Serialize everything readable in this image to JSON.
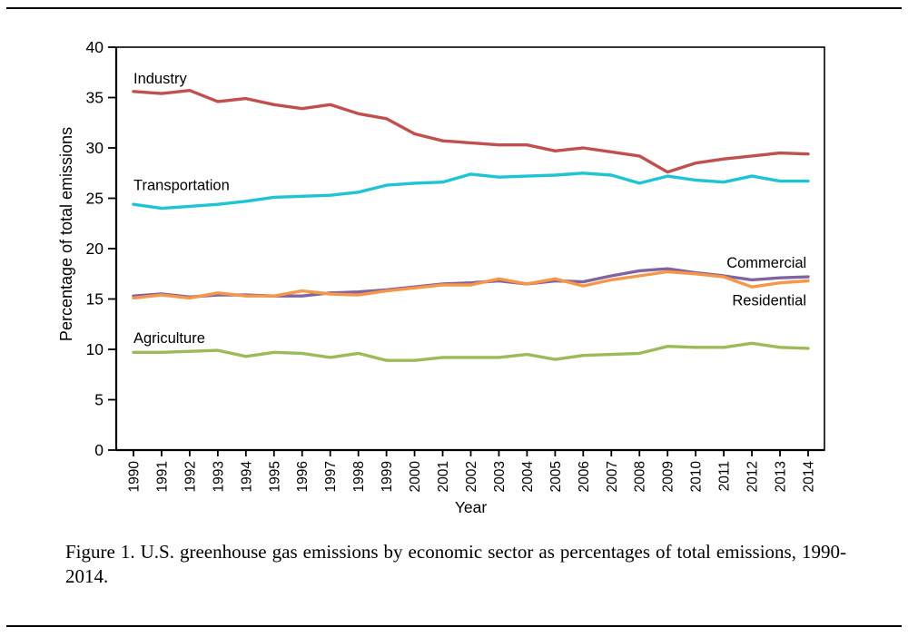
{
  "page": {
    "caption": "Figure 1.  U.S. greenhouse gas emissions by economic sector as percentages of total emissions, 1990-2014."
  },
  "chart_data": {
    "type": "line",
    "title": "",
    "xlabel": "Year",
    "ylabel": "Percentage of total emissions",
    "xlim": [
      1990,
      2014
    ],
    "ylim": [
      0,
      40
    ],
    "yticks": [
      0,
      5,
      10,
      15,
      20,
      25,
      30,
      35,
      40
    ],
    "grid": false,
    "legend": "inline-labels",
    "x": [
      1990,
      1991,
      1992,
      1993,
      1994,
      1995,
      1996,
      1997,
      1998,
      1999,
      2000,
      2001,
      2002,
      2003,
      2004,
      2005,
      2006,
      2007,
      2008,
      2009,
      2010,
      2011,
      2012,
      2013,
      2014
    ],
    "series": [
      {
        "name": "Industry",
        "color": "#c0504d",
        "label_at": [
          1990.0,
          36.4
        ],
        "values": [
          35.6,
          35.4,
          35.7,
          34.6,
          34.9,
          34.3,
          33.9,
          34.3,
          33.4,
          32.9,
          31.4,
          30.7,
          30.5,
          30.3,
          30.3,
          29.7,
          30.0,
          29.6,
          29.2,
          27.6,
          28.5,
          28.9,
          29.2,
          29.5,
          29.4
        ]
      },
      {
        "name": "Transportation",
        "color": "#1fc4d4",
        "label_at": [
          1990.0,
          25.8
        ],
        "values": [
          24.4,
          24.0,
          24.2,
          24.4,
          24.7,
          25.1,
          25.2,
          25.3,
          25.6,
          26.3,
          26.5,
          26.6,
          27.4,
          27.1,
          27.2,
          27.3,
          27.5,
          27.3,
          26.5,
          27.2,
          26.8,
          26.6,
          27.2,
          26.7,
          26.7
        ]
      },
      {
        "name": "Commercial",
        "color": "#8064a2",
        "label_at": [
          2011.1,
          18.1
        ],
        "values": [
          15.3,
          15.5,
          15.2,
          15.4,
          15.4,
          15.3,
          15.3,
          15.6,
          15.7,
          15.9,
          16.2,
          16.5,
          16.6,
          16.8,
          16.5,
          16.8,
          16.7,
          17.3,
          17.8,
          18.0,
          17.6,
          17.3,
          16.9,
          17.1,
          17.2
        ]
      },
      {
        "name": "Residential",
        "color": "#f79646",
        "label_at": [
          2011.3,
          14.35
        ],
        "values": [
          15.1,
          15.4,
          15.1,
          15.6,
          15.3,
          15.3,
          15.8,
          15.5,
          15.4,
          15.8,
          16.1,
          16.4,
          16.4,
          17.0,
          16.5,
          17.0,
          16.3,
          16.9,
          17.3,
          17.7,
          17.5,
          17.2,
          16.2,
          16.6,
          16.8
        ]
      },
      {
        "name": "Agriculture",
        "color": "#9bbb59",
        "label_at": [
          1990.0,
          10.65
        ],
        "values": [
          9.7,
          9.7,
          9.8,
          9.9,
          9.3,
          9.7,
          9.6,
          9.2,
          9.6,
          8.9,
          8.9,
          9.2,
          9.2,
          9.2,
          9.5,
          9.0,
          9.4,
          9.5,
          9.6,
          10.3,
          10.2,
          10.2,
          10.6,
          10.2,
          10.1
        ]
      }
    ]
  }
}
